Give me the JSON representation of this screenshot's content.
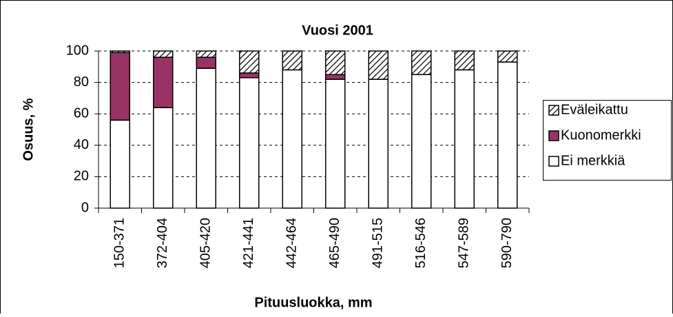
{
  "chart_data": {
    "type": "stacked_bar",
    "title": "Vuosi 2001",
    "x_label": "Pituusluokka, mm",
    "y_label": "Osuus, %",
    "categories": [
      "150-371",
      "372-404",
      "405-420",
      "421-441",
      "442-464",
      "465-490",
      "491-515",
      "516-546",
      "547-589",
      "590-790"
    ],
    "series": [
      {
        "name": "Ei merkkiä",
        "color": "#ffffff",
        "values": [
          56,
          64,
          89,
          83,
          88,
          82,
          82,
          85,
          88,
          93
        ]
      },
      {
        "name": "Kuonomerkki",
        "color": "#993366",
        "values": [
          43,
          32,
          7,
          3,
          0,
          3,
          0,
          0,
          0,
          0
        ]
      },
      {
        "name": "Eväleikattu",
        "color": "#000000",
        "values": [
          1,
          4,
          4,
          14,
          12,
          15,
          18,
          15,
          12,
          7
        ]
      }
    ],
    "hatched_series": "Eväleikattu",
    "ylim": [
      0,
      100
    ],
    "yticks": [
      0,
      20,
      40,
      60,
      80,
      100
    ],
    "grid": true,
    "legend": "right"
  }
}
